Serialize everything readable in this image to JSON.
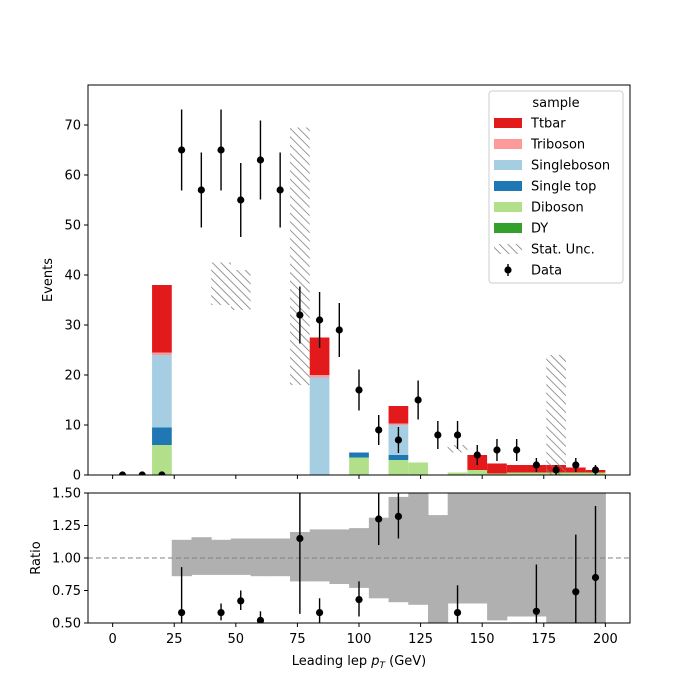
{
  "chart_data": [
    {
      "type": "bar",
      "subtype": "stacked-histogram-with-data-points",
      "xlabel_prefix": "Leading lep ",
      "xlabel_math": "p",
      "xlabel_sub": "T",
      "xlabel_suffix": " (GeV)",
      "ylabel": "Events",
      "xlim": [
        -10,
        210
      ],
      "ylim": [
        0,
        78
      ],
      "xticks": [
        0,
        25,
        50,
        75,
        100,
        125,
        150,
        175,
        200
      ],
      "yticks": [
        0,
        10,
        20,
        30,
        40,
        50,
        60,
        70
      ],
      "bin_edges": [
        0,
        8,
        16,
        24,
        32,
        40,
        48,
        56,
        64,
        72,
        80,
        88,
        96,
        104,
        112,
        120,
        128,
        136,
        144,
        152,
        160,
        168,
        176,
        184,
        192,
        200
      ],
      "legend": {
        "title": "sample",
        "position": "upper right",
        "entries": [
          "Ttbar",
          "Triboson",
          "Singleboson",
          "Single top",
          "Diboson",
          "DY",
          "Stat. Unc.",
          "Data"
        ]
      },
      "colors": {
        "Ttbar": "#e31a1c",
        "Triboson": "#fb9a99",
        "Singleboson": "#a6cee3",
        "Single top": "#1f78b4",
        "Diboson": "#b2df8a",
        "DY": "#33a02c",
        "Stat. Unc.": "#808080",
        "Data": "#000000"
      },
      "stack_order": [
        "DY",
        "Diboson",
        "Single top",
        "Singleboson",
        "Triboson",
        "Ttbar"
      ],
      "series": [
        {
          "name": "DY",
          "values": [
            0,
            0,
            0,
            0,
            0,
            0,
            0,
            0,
            0,
            0,
            0,
            0,
            0,
            0,
            0,
            0,
            0,
            0,
            0,
            0,
            0,
            0,
            0,
            0,
            0
          ]
        },
        {
          "name": "Diboson",
          "values": [
            0,
            0,
            6,
            0,
            0,
            0,
            0,
            0,
            0,
            0,
            0,
            0,
            3.5,
            0,
            3,
            2.5,
            0,
            0.5,
            1,
            0.3,
            0.5,
            0.5,
            0.5,
            0.5,
            0.5
          ]
        },
        {
          "name": "Single top",
          "values": [
            0,
            0,
            3.5,
            0,
            0,
            0,
            0,
            0,
            0,
            0,
            0,
            0,
            1,
            0,
            1,
            0,
            0,
            0,
            0,
            0,
            0,
            0,
            0,
            0,
            0
          ]
        },
        {
          "name": "Singleboson",
          "values": [
            0,
            0,
            14.5,
            0,
            0,
            0,
            0,
            0,
            0,
            0,
            19.5,
            0,
            0,
            0,
            6,
            0,
            0,
            0,
            0,
            0,
            0,
            0,
            0,
            0,
            0
          ]
        },
        {
          "name": "Triboson",
          "values": [
            0,
            0,
            0.5,
            0,
            0,
            0,
            0,
            0,
            0,
            0,
            0.5,
            0,
            0,
            0,
            0.3,
            0,
            0,
            0,
            0,
            0,
            0,
            0,
            0,
            0,
            0
          ]
        },
        {
          "name": "Ttbar",
          "values": [
            0,
            0,
            13.5,
            0,
            0,
            0,
            0,
            0,
            0,
            0,
            7.5,
            0,
            0,
            0,
            3.5,
            0,
            0,
            0,
            3,
            2,
            1.5,
            1.5,
            1.5,
            1,
            0.5
          ]
        }
      ],
      "stat_unc": {
        "bin_centers": [
          28,
          36,
          44,
          52,
          60,
          68,
          76,
          84,
          92,
          100,
          108,
          116,
          124,
          132,
          140,
          148,
          156,
          164,
          172,
          180,
          188,
          196
        ],
        "low": [
          0,
          0,
          34,
          33,
          0,
          0,
          18,
          0,
          0,
          0,
          0,
          0,
          0,
          0,
          4.5,
          0,
          0,
          0,
          0,
          0,
          0,
          0
        ],
        "high": [
          0,
          0,
          42.5,
          41,
          0,
          0,
          69.5,
          0,
          0,
          0,
          0,
          0,
          0,
          0,
          6,
          0,
          0,
          0,
          0,
          24,
          0,
          0
        ]
      },
      "data_points": {
        "x": [
          4,
          12,
          20,
          28,
          36,
          44,
          52,
          60,
          68,
          76,
          84,
          92,
          100,
          108,
          116,
          124,
          132,
          140,
          148,
          156,
          164,
          172,
          180,
          188,
          196
        ],
        "y": [
          0,
          0,
          0,
          65,
          57,
          65,
          55,
          63,
          57,
          32,
          31,
          29,
          17,
          9,
          7,
          15,
          8,
          8,
          4,
          5,
          5,
          2,
          1,
          2,
          1
        ],
        "yerr": [
          0,
          0,
          0,
          8.1,
          7.5,
          8.1,
          7.4,
          7.9,
          7.5,
          5.7,
          5.6,
          5.4,
          4.1,
          3.0,
          2.6,
          3.9,
          2.8,
          2.8,
          2.0,
          2.2,
          2.2,
          1.4,
          1.0,
          1.4,
          1.0
        ]
      }
    },
    {
      "type": "scatter",
      "subtype": "ratio-panel",
      "ylabel": "Ratio",
      "xlim": [
        -10,
        210
      ],
      "ylim": [
        0.5,
        1.5
      ],
      "yticks": [
        0.5,
        0.75,
        1.0,
        1.25,
        1.5
      ],
      "ytick_labels": [
        "0.50",
        "0.75",
        "1.00",
        "1.25",
        "1.50"
      ],
      "reference_line": 1.0,
      "band_bin_edges": [
        24,
        32,
        40,
        48,
        56,
        64,
        72,
        80,
        88,
        96,
        104,
        112,
        120,
        128,
        136,
        144,
        152,
        160,
        168,
        176,
        184,
        192,
        200
      ],
      "band_low": [
        0.86,
        0.87,
        0.87,
        0.87,
        0.86,
        0.86,
        0.82,
        0.82,
        0.8,
        0.77,
        0.69,
        0.66,
        0.64,
        0.5,
        0.65,
        0.65,
        0.52,
        0.55,
        0.55,
        0.5,
        0.5,
        0.5
      ],
      "band_high": [
        1.14,
        1.16,
        1.14,
        1.15,
        1.15,
        1.15,
        1.2,
        1.22,
        1.22,
        1.23,
        1.31,
        1.47,
        1.5,
        1.33,
        1.5,
        1.5,
        1.5,
        1.5,
        1.5,
        1.5,
        1.5,
        1.5
      ],
      "band_color": "#b0b0b0",
      "points": {
        "x": [
          28,
          44,
          52,
          60,
          76,
          84,
          100,
          108,
          116,
          140,
          172,
          188,
          196
        ],
        "y": [
          0.58,
          0.58,
          0.67,
          0.52,
          1.15,
          0.58,
          0.68,
          1.3,
          1.32,
          0.58,
          0.59,
          0.74,
          0.85
        ],
        "ylo": [
          0.35,
          0.52,
          0.6,
          0.45,
          0.57,
          0.47,
          0.55,
          1.1,
          1.15,
          0.35,
          0.25,
          0.3,
          0.3
        ],
        "yhi": [
          0.93,
          0.65,
          0.75,
          0.59,
          1.73,
          0.69,
          0.82,
          1.5,
          1.5,
          0.79,
          0.95,
          1.18,
          1.4
        ]
      }
    }
  ]
}
